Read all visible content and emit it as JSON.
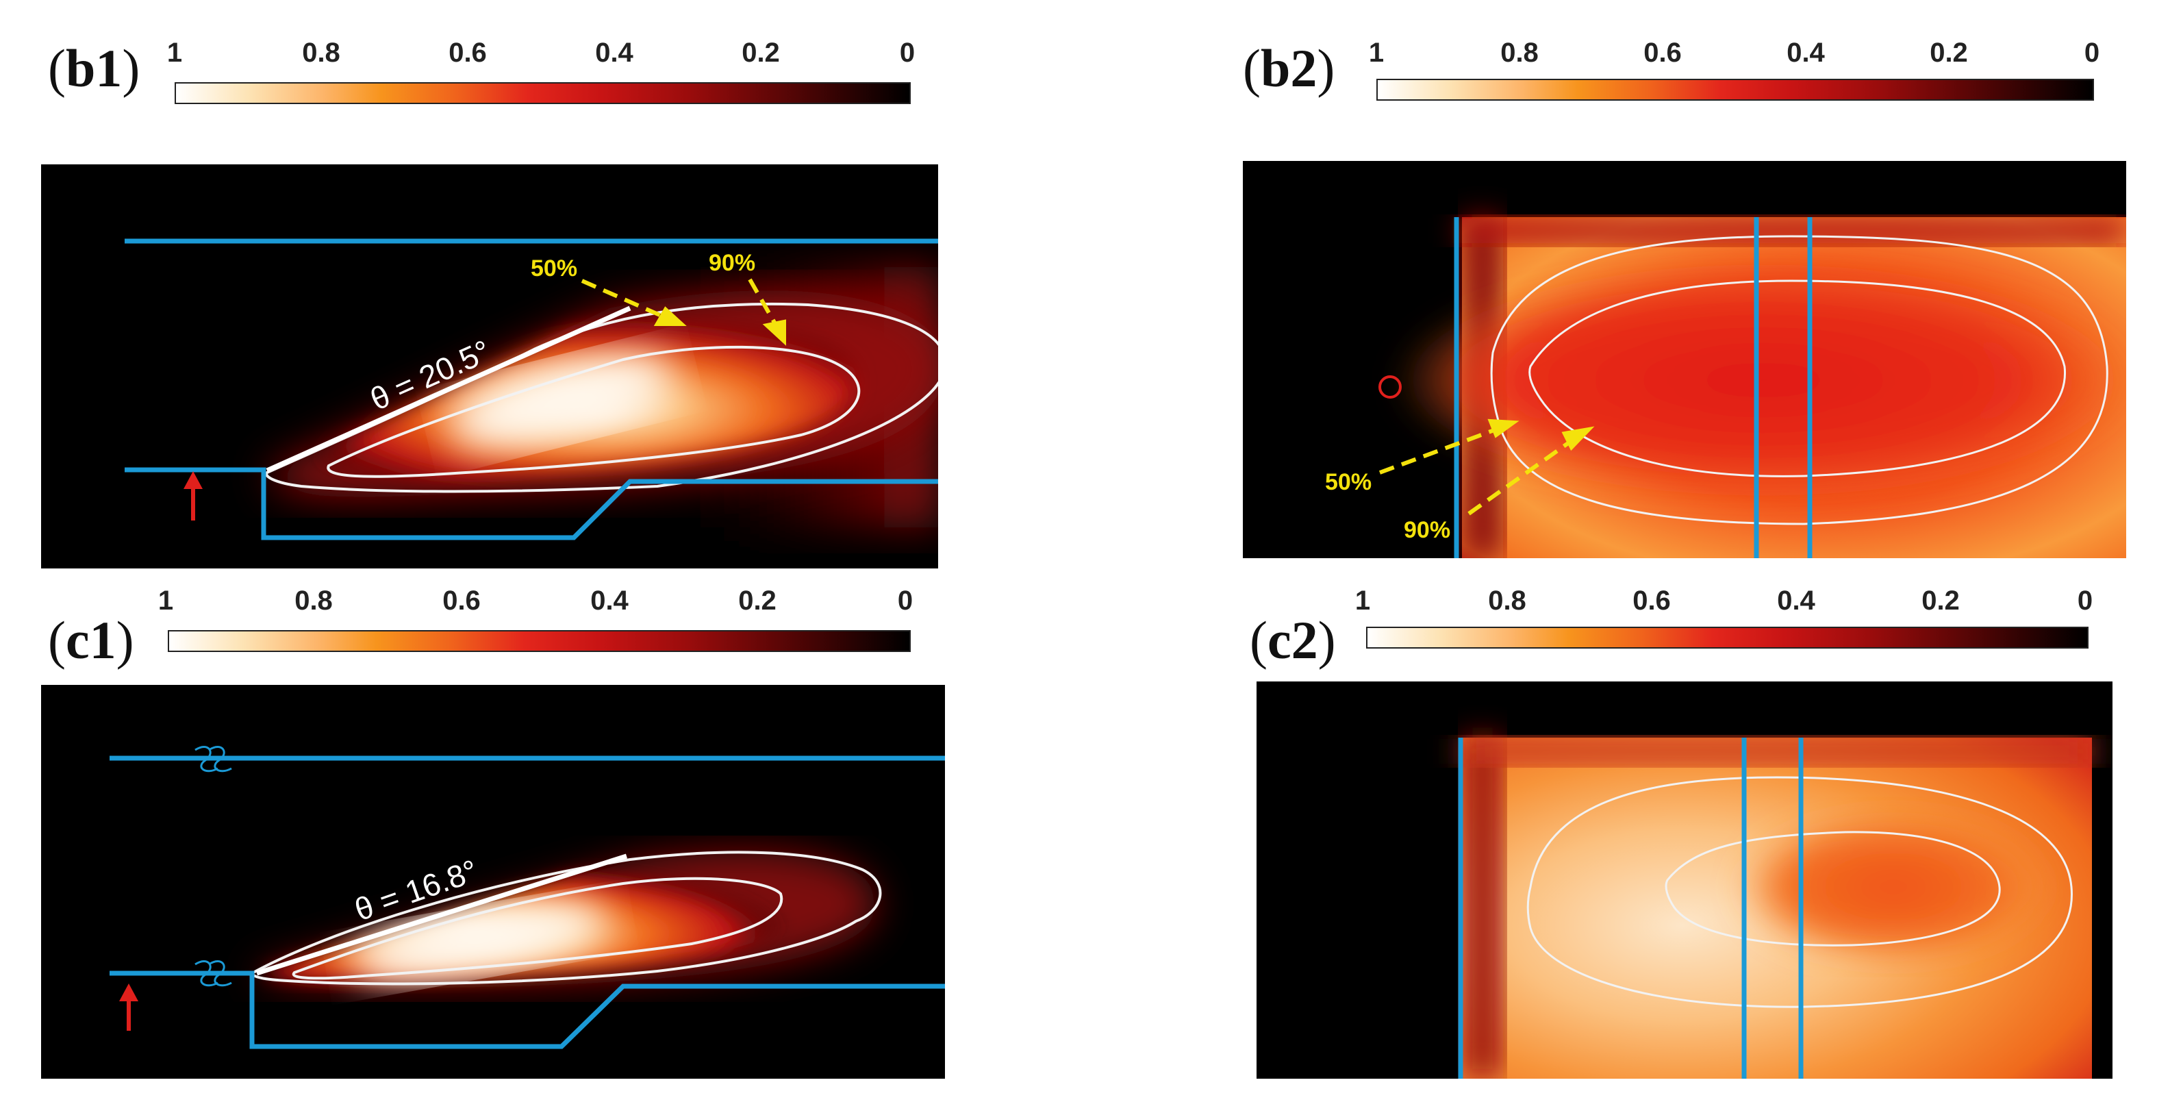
{
  "colorbar": {
    "ticks": [
      "1",
      "0.8",
      "0.6",
      "0.4",
      "0.2",
      "0"
    ],
    "colors": [
      "#ffffff",
      "#fdb56a",
      "#f0641c",
      "#e3261c",
      "#9a0c0c",
      "#000000"
    ]
  },
  "panels": {
    "b1": {
      "label_open": "(",
      "label_id": "b1",
      "label_close": ")",
      "angle_text": "θ = 20.5°",
      "contour_50": "50%",
      "contour_90": "90%"
    },
    "b2": {
      "label_open": "(",
      "label_id": "b2",
      "label_close": ")",
      "contour_50": "50%",
      "contour_90": "90%"
    },
    "c1": {
      "label_open": "(",
      "label_id": "c1",
      "label_close": ")",
      "angle_text": "θ = 16.8°"
    },
    "c2": {
      "label_open": "(",
      "label_id": "c2",
      "label_close": ")"
    }
  },
  "colors": {
    "wall": "#1b9ad6",
    "contour": "#f2f2f2",
    "annotation": "#f4e20c",
    "inlet_arrow": "#e1201c",
    "marker": "#e1201c"
  }
}
